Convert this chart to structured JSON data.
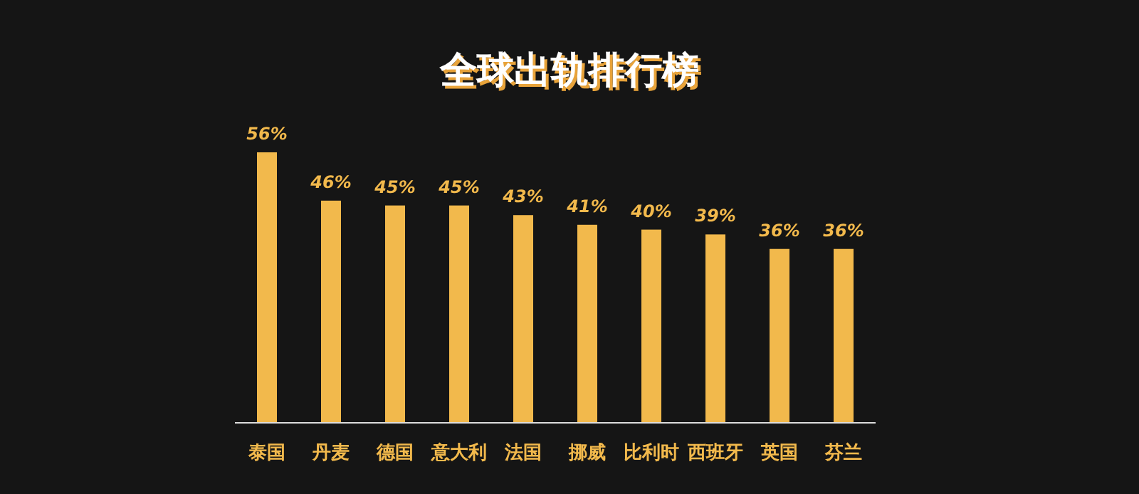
{
  "chart_data": {
    "type": "bar",
    "title": "全球出轨排行榜",
    "categories": [
      "泰国",
      "丹麦",
      "德国",
      "意大利",
      "法国",
      "挪威",
      "比利时",
      "西班牙",
      "英国",
      "芬兰"
    ],
    "values": [
      56,
      46,
      45,
      45,
      43,
      41,
      40,
      39,
      36,
      36
    ],
    "value_labels": [
      "56%",
      "46%",
      "45%",
      "45%",
      "43%",
      "41%",
      "40%",
      "39%",
      "36%",
      "36%"
    ],
    "color": "#f2b94c"
  }
}
